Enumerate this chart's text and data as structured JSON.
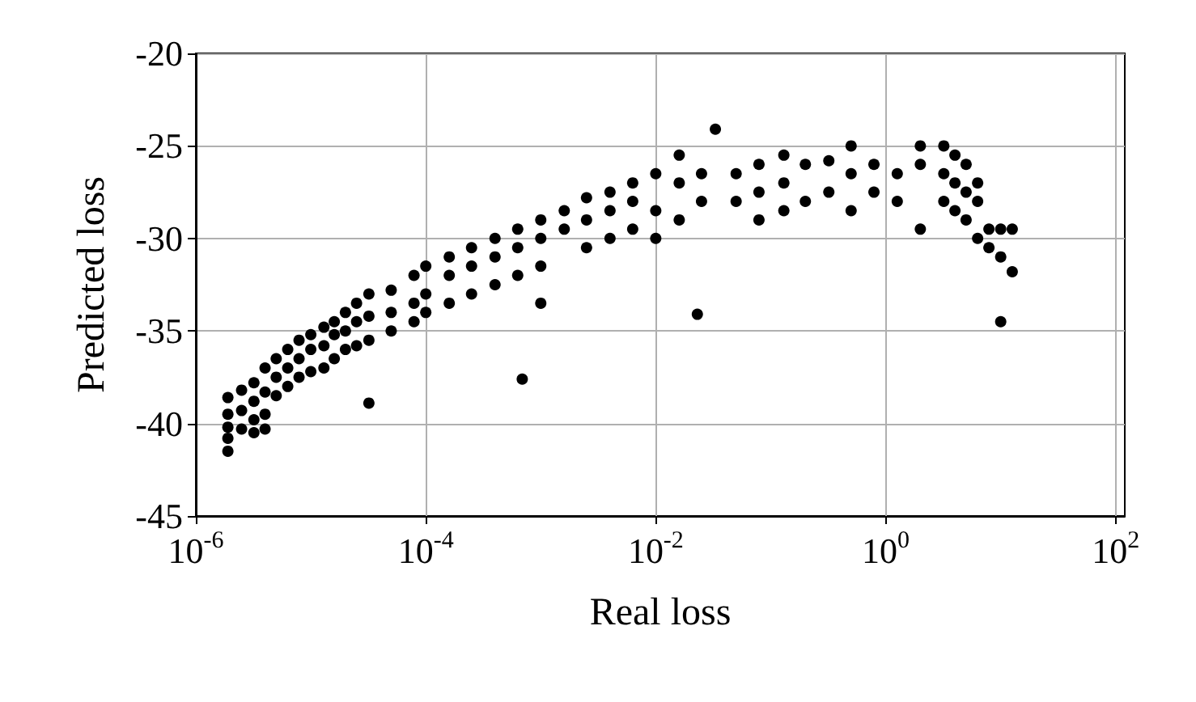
{
  "chart_data": {
    "type": "scatter",
    "xlabel": "Real loss",
    "ylabel": "Predicted loss",
    "log": "x",
    "grid": true,
    "marker": "circle",
    "xlim": [
      1e-06,
      120
    ],
    "xticks": [
      {
        "value": 1e-06,
        "label": "10$^{-6}$"
      },
      {
        "value": 0.0001,
        "label": "10$^{-4}$"
      },
      {
        "value": 0.01,
        "label": "10$^{-2}$"
      },
      {
        "value": 1,
        "label": "10$^{0}$"
      },
      {
        "value": 100,
        "label": "10$^{2}$"
      }
    ],
    "ylim": [
      -45,
      -20
    ],
    "yticks": [
      -45,
      -40,
      -35,
      -30,
      -25,
      -20
    ],
    "series": [
      {
        "color": "#000000",
        "x": [
          1.9e-06,
          1.9e-06,
          1.9e-06,
          1.9e-06,
          1.9e-06,
          2.5e-06,
          2.5e-06,
          2.5e-06,
          3.2e-06,
          3.2e-06,
          3.2e-06,
          3.2e-06,
          4e-06,
          4e-06,
          4e-06,
          4e-06,
          5e-06,
          5e-06,
          5e-06,
          6.3e-06,
          6.3e-06,
          6.3e-06,
          7.9e-06,
          7.9e-06,
          7.9e-06,
          1e-05,
          1e-05,
          1e-05,
          1.3e-05,
          1.3e-05,
          1.3e-05,
          1.6e-05,
          1.6e-05,
          1.6e-05,
          2e-05,
          2e-05,
          2e-05,
          2.5e-05,
          2.5e-05,
          2.5e-05,
          3.2e-05,
          3.2e-05,
          3.2e-05,
          3.2e-05,
          5e-05,
          5e-05,
          5e-05,
          7.9e-05,
          7.9e-05,
          7.9e-05,
          0.0001,
          0.0001,
          0.0001,
          0.00016,
          0.00016,
          0.00016,
          0.00025,
          0.00025,
          0.00025,
          0.0004,
          0.0004,
          0.0004,
          0.00063,
          0.00063,
          0.00063,
          0.00069,
          0.001,
          0.001,
          0.001,
          0.001,
          0.0016,
          0.0016,
          0.0025,
          0.0025,
          0.0025,
          0.004,
          0.004,
          0.004,
          0.0063,
          0.0063,
          0.0063,
          0.01,
          0.01,
          0.01,
          0.016,
          0.016,
          0.016,
          0.025,
          0.025,
          0.023,
          0.033,
          0.05,
          0.05,
          0.079,
          0.079,
          0.079,
          0.13,
          0.13,
          0.13,
          0.2,
          0.2,
          0.32,
          0.32,
          0.5,
          0.5,
          0.5,
          0.79,
          0.79,
          1.26,
          1.26,
          2,
          2,
          2,
          3.2,
          3.2,
          3.2,
          4,
          4,
          4,
          5,
          5,
          5,
          6.3,
          6.3,
          6.3,
          7.9,
          7.9,
          10,
          10,
          10,
          12.6,
          12.6
        ],
        "values": [
          -38.6,
          -39.5,
          -40.2,
          -40.8,
          -41.5,
          -38.2,
          -39.3,
          -40.3,
          -37.8,
          -38.8,
          -39.8,
          -40.5,
          -37,
          -38.3,
          -39.5,
          -40.3,
          -36.5,
          -37.5,
          -38.5,
          -36,
          -37,
          -38,
          -35.5,
          -36.5,
          -37.5,
          -35.2,
          -36,
          -37.2,
          -34.8,
          -35.8,
          -37,
          -34.5,
          -35.2,
          -36.5,
          -34,
          -35,
          -36,
          -33.5,
          -34.5,
          -35.8,
          -33,
          -34.2,
          -35.5,
          -38.9,
          -32.8,
          -34,
          -35,
          -32,
          -33.5,
          -34.5,
          -31.5,
          -33,
          -34,
          -31,
          -32,
          -33.5,
          -30.5,
          -31.5,
          -33,
          -30,
          -31,
          -32.5,
          -29.5,
          -30.5,
          -32,
          -37.6,
          -29,
          -30,
          -31.5,
          -33.5,
          -28.5,
          -29.5,
          -27.8,
          -29,
          -30.5,
          -27.5,
          -28.5,
          -30,
          -27,
          -28,
          -29.5,
          -26.5,
          -28.5,
          -30,
          -25.5,
          -27,
          -29,
          -26.5,
          -28,
          -34.1,
          -24.1,
          -26.5,
          -28,
          -26,
          -27.5,
          -29,
          -25.5,
          -27,
          -28.5,
          -26,
          -28,
          -25.8,
          -27.5,
          -25,
          -26.5,
          -28.5,
          -26,
          -27.5,
          -26.5,
          -28,
          -25,
          -26,
          -29.5,
          -25,
          -26.5,
          -28,
          -25.5,
          -27,
          -28.5,
          -26,
          -27.5,
          -29,
          -27,
          -28,
          -30,
          -29.5,
          -30.5,
          -29.5,
          -31,
          -34.5,
          -29.5,
          -31.8
        ]
      }
    ]
  }
}
